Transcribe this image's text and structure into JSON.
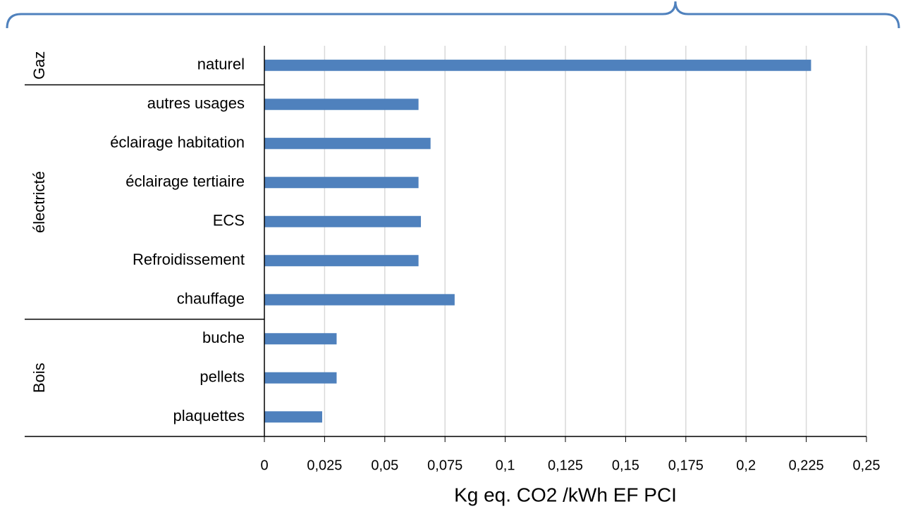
{
  "chart_data": {
    "type": "bar",
    "orientation": "horizontal",
    "color": "#4f81bd",
    "grid": true,
    "x_label": "Kg eq. CO2 /kWh EF PCI",
    "groups": [
      {
        "name": "Gaz",
        "categories": [
          "naturel"
        ],
        "values": [
          0.227
        ]
      },
      {
        "name": "électricté",
        "categories": [
          "autres usages",
          "éclairage habitation",
          "éclairage tertiaire",
          "ECS",
          "Refroidissement",
          "chauffage"
        ],
        "values": [
          0.064,
          0.069,
          0.064,
          0.065,
          0.064,
          0.079
        ]
      },
      {
        "name": "Bois",
        "categories": [
          "buche",
          "pellets",
          "plaquettes"
        ],
        "values": [
          0.03,
          0.03,
          0.024
        ]
      }
    ],
    "xlim": [
      0,
      0.25
    ],
    "xticks": [
      0,
      {
        "value": 0.025,
        "label": "0,025"
      },
      {
        "value": 0.05,
        "label": "0,05"
      },
      {
        "value": 0.075,
        "label": "0,075"
      },
      {
        "value": 0.1,
        "label": "0,1"
      },
      {
        "value": 0.125,
        "label": "0,125"
      },
      {
        "value": 0.15,
        "label": "0,15"
      },
      {
        "value": 0.175,
        "label": "0,175"
      },
      {
        "value": 0.2,
        "label": "0,2"
      },
      {
        "value": 0.225,
        "label": "0,225"
      },
      {
        "value": 0.25,
        "label": "0,25"
      }
    ]
  }
}
